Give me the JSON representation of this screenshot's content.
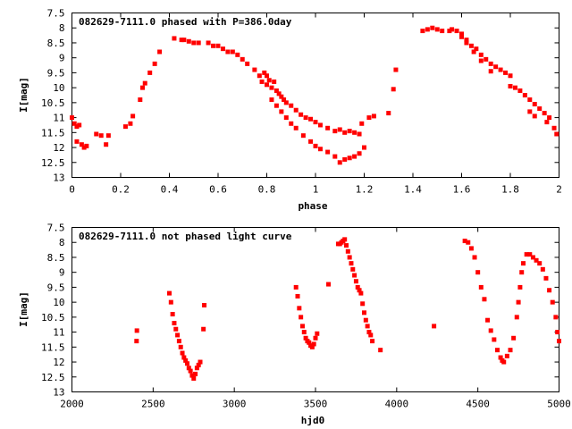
{
  "chart_data": [
    {
      "type": "scatter",
      "title": "082629-7111.0 phased with P=386.0day",
      "xlabel": "phase",
      "ylabel": "I[mag]",
      "xlim": [
        0,
        2
      ],
      "ylim": [
        13,
        7.5
      ],
      "y_inverted": true,
      "grid": false,
      "marker_color": "#ff0000",
      "xticks": [
        "0",
        "0.2",
        "0.4",
        "0.6",
        "0.8",
        "1",
        "1.2",
        "1.4",
        "1.6",
        "1.8",
        "2"
      ],
      "yticks": [
        "7.5",
        "8",
        "8.5",
        "9",
        "9.5",
        "10",
        "10.5",
        "11",
        "11.5",
        "12",
        "12.5",
        "13"
      ],
      "series": [
        {
          "points": [
            [
              0.0,
              11.0
            ],
            [
              0.01,
              11.2
            ],
            [
              0.02,
              11.3
            ],
            [
              0.03,
              11.25
            ],
            [
              0.02,
              11.8
            ],
            [
              0.04,
              11.9
            ],
            [
              0.05,
              12.0
            ],
            [
              0.06,
              11.95
            ],
            [
              0.1,
              11.55
            ],
            [
              0.12,
              11.6
            ],
            [
              0.14,
              11.9
            ],
            [
              0.15,
              11.6
            ],
            [
              0.22,
              11.3
            ],
            [
              0.24,
              11.2
            ],
            [
              0.25,
              10.95
            ],
            [
              0.28,
              10.4
            ],
            [
              0.29,
              10.0
            ],
            [
              0.3,
              9.85
            ],
            [
              0.32,
              9.5
            ],
            [
              0.34,
              9.2
            ],
            [
              0.36,
              8.8
            ],
            [
              0.42,
              8.35
            ],
            [
              0.45,
              8.4
            ],
            [
              0.46,
              8.4
            ],
            [
              0.48,
              8.45
            ],
            [
              0.5,
              8.5
            ],
            [
              0.52,
              8.5
            ],
            [
              0.56,
              8.5
            ],
            [
              0.58,
              8.6
            ],
            [
              0.6,
              8.6
            ],
            [
              0.62,
              8.7
            ],
            [
              0.64,
              8.8
            ],
            [
              0.66,
              8.8
            ],
            [
              0.68,
              8.9
            ],
            [
              0.7,
              9.05
            ],
            [
              0.72,
              9.2
            ],
            [
              0.75,
              9.4
            ],
            [
              0.77,
              9.6
            ],
            [
              0.78,
              9.8
            ],
            [
              0.79,
              9.5
            ],
            [
              0.8,
              9.6
            ],
            [
              0.8,
              9.9
            ],
            [
              0.81,
              9.75
            ],
            [
              0.82,
              10.0
            ],
            [
              0.83,
              9.8
            ],
            [
              0.84,
              10.1
            ],
            [
              0.85,
              10.2
            ],
            [
              0.86,
              10.3
            ],
            [
              0.87,
              10.4
            ],
            [
              0.88,
              10.5
            ],
            [
              0.9,
              10.6
            ],
            [
              0.92,
              10.75
            ],
            [
              0.94,
              10.9
            ],
            [
              0.96,
              11.0
            ],
            [
              0.98,
              11.05
            ],
            [
              1.0,
              11.15
            ],
            [
              0.82,
              10.4
            ],
            [
              0.84,
              10.6
            ],
            [
              0.86,
              10.8
            ],
            [
              0.88,
              11.0
            ],
            [
              0.9,
              11.2
            ],
            [
              0.92,
              11.35
            ],
            [
              0.95,
              11.6
            ],
            [
              0.98,
              11.8
            ],
            [
              1.0,
              11.95
            ],
            [
              1.02,
              12.05
            ],
            [
              1.05,
              12.15
            ],
            [
              1.08,
              12.3
            ],
            [
              1.1,
              12.5
            ],
            [
              1.12,
              12.4
            ],
            [
              1.14,
              12.35
            ],
            [
              1.16,
              12.3
            ],
            [
              1.18,
              12.2
            ],
            [
              1.2,
              12.0
            ],
            [
              1.02,
              11.25
            ],
            [
              1.05,
              11.35
            ],
            [
              1.08,
              11.45
            ],
            [
              1.1,
              11.4
            ],
            [
              1.12,
              11.5
            ],
            [
              1.14,
              11.45
            ],
            [
              1.16,
              11.5
            ],
            [
              1.18,
              11.55
            ],
            [
              1.19,
              11.2
            ],
            [
              1.22,
              11.0
            ],
            [
              1.24,
              10.95
            ],
            [
              1.3,
              10.85
            ],
            [
              1.32,
              10.05
            ],
            [
              1.33,
              9.4
            ],
            [
              1.44,
              8.1
            ],
            [
              1.46,
              8.05
            ],
            [
              1.48,
              8.0
            ],
            [
              1.5,
              8.05
            ],
            [
              1.52,
              8.1
            ],
            [
              1.55,
              8.1
            ],
            [
              1.56,
              8.05
            ],
            [
              1.58,
              8.1
            ],
            [
              1.6,
              8.2
            ],
            [
              1.62,
              8.4
            ],
            [
              1.64,
              8.6
            ],
            [
              1.66,
              8.7
            ],
            [
              1.68,
              8.9
            ],
            [
              1.7,
              9.05
            ],
            [
              1.72,
              9.2
            ],
            [
              1.74,
              9.3
            ],
            [
              1.76,
              9.4
            ],
            [
              1.78,
              9.5
            ],
            [
              1.8,
              9.6
            ],
            [
              1.6,
              8.3
            ],
            [
              1.62,
              8.5
            ],
            [
              1.65,
              8.8
            ],
            [
              1.68,
              9.1
            ],
            [
              1.72,
              9.45
            ],
            [
              1.8,
              9.95
            ],
            [
              1.82,
              10.0
            ],
            [
              1.84,
              10.1
            ],
            [
              1.86,
              10.25
            ],
            [
              1.88,
              10.4
            ],
            [
              1.9,
              10.55
            ],
            [
              1.92,
              10.7
            ],
            [
              1.94,
              10.85
            ],
            [
              1.96,
              11.0
            ],
            [
              1.98,
              11.35
            ],
            [
              1.99,
              11.55
            ],
            [
              1.88,
              10.8
            ],
            [
              1.9,
              10.95
            ],
            [
              1.95,
              11.15
            ]
          ]
        }
      ]
    },
    {
      "type": "scatter",
      "title": "082629-7111.0 not phased light curve",
      "xlabel": "hjd0",
      "ylabel": "I[mag]",
      "xlim": [
        2000,
        5000
      ],
      "ylim": [
        13,
        7.5
      ],
      "y_inverted": true,
      "grid": false,
      "marker_color": "#ff0000",
      "xticks": [
        "2000",
        "2500",
        "3000",
        "3500",
        "4000",
        "4500",
        "5000"
      ],
      "yticks": [
        "7.5",
        "8",
        "8.5",
        "9",
        "9.5",
        "10",
        "10.5",
        "11",
        "11.5",
        "12",
        "12.5",
        "13"
      ],
      "series": [
        {
          "points": [
            [
              2398,
              11.3
            ],
            [
              2400,
              10.95
            ],
            [
              2600,
              9.7
            ],
            [
              2610,
              10.0
            ],
            [
              2620,
              10.4
            ],
            [
              2630,
              10.7
            ],
            [
              2640,
              10.9
            ],
            [
              2650,
              11.1
            ],
            [
              2660,
              11.3
            ],
            [
              2670,
              11.5
            ],
            [
              2680,
              11.7
            ],
            [
              2690,
              11.85
            ],
            [
              2700,
              11.95
            ],
            [
              2710,
              12.05
            ],
            [
              2720,
              12.2
            ],
            [
              2730,
              12.3
            ],
            [
              2740,
              12.45
            ],
            [
              2750,
              12.55
            ],
            [
              2760,
              12.4
            ],
            [
              2770,
              12.2
            ],
            [
              2780,
              12.1
            ],
            [
              2790,
              12.0
            ],
            [
              2810,
              10.9
            ],
            [
              2815,
              10.1
            ],
            [
              3380,
              9.5
            ],
            [
              3390,
              9.8
            ],
            [
              3400,
              10.2
            ],
            [
              3410,
              10.5
            ],
            [
              3420,
              10.8
            ],
            [
              3430,
              11.0
            ],
            [
              3440,
              11.2
            ],
            [
              3450,
              11.3
            ],
            [
              3460,
              11.35
            ],
            [
              3470,
              11.45
            ],
            [
              3480,
              11.5
            ],
            [
              3490,
              11.4
            ],
            [
              3500,
              11.2
            ],
            [
              3510,
              11.05
            ],
            [
              3580,
              9.4
            ],
            [
              3640,
              8.05
            ],
            [
              3650,
              8.05
            ],
            [
              3660,
              8.0
            ],
            [
              3670,
              7.95
            ],
            [
              3680,
              7.9
            ],
            [
              3690,
              8.1
            ],
            [
              3700,
              8.3
            ],
            [
              3710,
              8.5
            ],
            [
              3720,
              8.7
            ],
            [
              3730,
              8.9
            ],
            [
              3740,
              9.1
            ],
            [
              3750,
              9.3
            ],
            [
              3760,
              9.5
            ],
            [
              3770,
              9.6
            ],
            [
              3780,
              9.7
            ],
            [
              3790,
              10.05
            ],
            [
              3800,
              10.35
            ],
            [
              3810,
              10.6
            ],
            [
              3820,
              10.8
            ],
            [
              3830,
              11.0
            ],
            [
              3840,
              11.1
            ],
            [
              3850,
              11.3
            ],
            [
              3900,
              11.6
            ],
            [
              4230,
              10.8
            ],
            [
              4420,
              7.95
            ],
            [
              4440,
              8.0
            ],
            [
              4460,
              8.2
            ],
            [
              4480,
              8.5
            ],
            [
              4500,
              9.0
            ],
            [
              4520,
              9.5
            ],
            [
              4540,
              9.9
            ],
            [
              4560,
              10.6
            ],
            [
              4580,
              10.95
            ],
            [
              4600,
              11.25
            ],
            [
              4620,
              11.6
            ],
            [
              4640,
              11.85
            ],
            [
              4650,
              11.95
            ],
            [
              4660,
              12.0
            ],
            [
              4680,
              11.8
            ],
            [
              4700,
              11.6
            ],
            [
              4720,
              11.2
            ],
            [
              4740,
              10.5
            ],
            [
              4750,
              10.0
            ],
            [
              4760,
              9.5
            ],
            [
              4770,
              9.0
            ],
            [
              4780,
              8.7
            ],
            [
              4800,
              8.4
            ],
            [
              4820,
              8.4
            ],
            [
              4840,
              8.5
            ],
            [
              4860,
              8.6
            ],
            [
              4880,
              8.7
            ],
            [
              4900,
              8.9
            ],
            [
              4920,
              9.2
            ],
            [
              4940,
              9.6
            ],
            [
              4960,
              10.0
            ],
            [
              4980,
              10.5
            ],
            [
              4990,
              11.0
            ],
            [
              5000,
              11.3
            ]
          ]
        }
      ]
    }
  ]
}
